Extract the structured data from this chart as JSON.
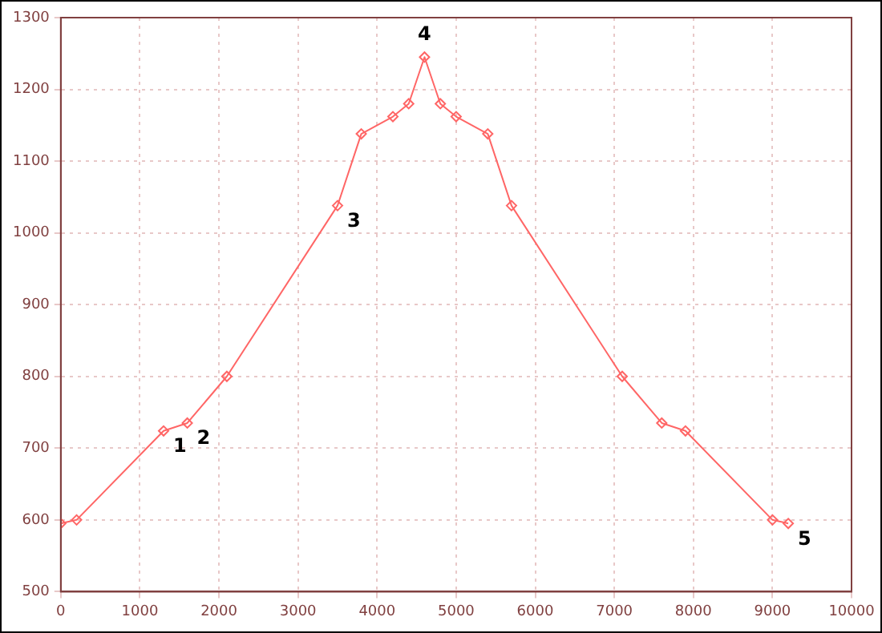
{
  "chart_data": {
    "type": "line",
    "x": [
      0,
      200,
      1300,
      1600,
      2100,
      3500,
      3800,
      4200,
      4400,
      4600,
      4800,
      5000,
      5400,
      5700,
      7100,
      7600,
      7900,
      9000,
      9200
    ],
    "values": [
      595,
      600,
      724,
      735,
      800,
      1038,
      1138,
      1162,
      1180,
      1245,
      1180,
      1162,
      1138,
      1038,
      800,
      735,
      724,
      600,
      595
    ],
    "color": "#ff6666",
    "marker": "diamond",
    "line_style": "solid",
    "xlim": [
      0,
      10000
    ],
    "xticks": [
      0,
      1000,
      2000,
      3000,
      4000,
      5000,
      6000,
      7000,
      8000,
      9000,
      10000
    ],
    "ylim": [
      500,
      1300
    ],
    "yticks": [
      500,
      600,
      700,
      800,
      900,
      1000,
      1100,
      1200,
      1300
    ],
    "grid": true,
    "legend": false,
    "annotations": [
      {
        "text": "1",
        "x": 1300,
        "y": 724
      },
      {
        "text": "2",
        "x": 1600,
        "y": 735
      },
      {
        "text": "3",
        "x": 3500,
        "y": 1038
      },
      {
        "text": "4",
        "x": 4600,
        "y": 1245
      },
      {
        "text": "5",
        "x": 9200,
        "y": 595
      }
    ]
  }
}
